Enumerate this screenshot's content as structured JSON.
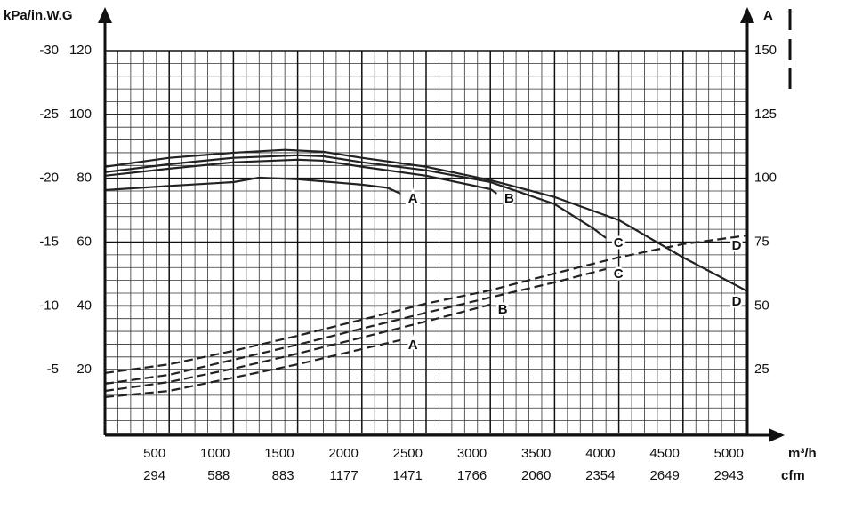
{
  "chart_data": {
    "type": "line",
    "y_axis_label": "kPa/in.W.G",
    "y2_axis_label": "A",
    "x_axis_label": "m³/h",
    "x2_axis_label": "cfm",
    "xlim": [
      0,
      5000
    ],
    "xticks": [
      500,
      1000,
      1500,
      2000,
      2500,
      3000,
      3500,
      4000,
      4500,
      5000
    ],
    "x2lim": [
      0,
      2943
    ],
    "x2ticks": [
      294,
      588,
      883,
      1177,
      1471,
      1766,
      2060,
      2354,
      2649,
      2943
    ],
    "ylim": [
      0,
      120
    ],
    "yticks": [
      20,
      40,
      60,
      80,
      100,
      120
    ],
    "y3lim": [
      0,
      -30
    ],
    "y3ticks": [
      -5,
      -10,
      -15,
      -20,
      -25,
      -30
    ],
    "y2lim": [
      0,
      150
    ],
    "y2ticks": [
      25,
      50,
      75,
      100,
      125,
      150
    ],
    "grid": true,
    "series": [
      {
        "name": "A",
        "color": "#222222",
        "dash": false,
        "x": [
          0,
          500,
          1000,
          1200,
          1500,
          2000,
          2200,
          2300
        ],
        "values": [
          76.3,
          77.6,
          78.8,
          80.2,
          79.7,
          78,
          77,
          75.2
        ]
      },
      {
        "name": "B",
        "color": "#222222",
        "dash": false,
        "x": [
          0,
          500,
          1000,
          1500,
          1700,
          2000,
          2500,
          3000,
          3050
        ],
        "values": [
          80.8,
          83,
          85,
          85.8,
          85.5,
          83.6,
          80.8,
          76.6,
          75.2
        ]
      },
      {
        "name": "C",
        "color": "#222222",
        "dash": false,
        "x": [
          0,
          500,
          1000,
          1500,
          1700,
          2000,
          2500,
          3000,
          3500,
          3800,
          3900
        ],
        "values": [
          81.9,
          84.4,
          86.4,
          87.2,
          86.9,
          85,
          82.5,
          78.8,
          71.9,
          64.3,
          61.3
        ]
      },
      {
        "name": "D",
        "color": "#222222",
        "dash": false,
        "x": [
          0,
          500,
          1000,
          1400,
          1700,
          2000,
          2500,
          3000,
          3500,
          4000,
          4500,
          5000
        ],
        "values": [
          83.6,
          86.4,
          88,
          88.9,
          88.3,
          86.4,
          83.6,
          79.4,
          74.1,
          66.9,
          55.2,
          44.6
        ]
      },
      {
        "name": "A",
        "color": "#222222",
        "dash": true,
        "axis": "y2",
        "x": [
          0,
          500,
          1000,
          1500,
          2000,
          2300
        ],
        "values": [
          14.3,
          16.7,
          21.9,
          27.1,
          33.1,
          36.6
        ]
      },
      {
        "name": "B",
        "color": "#222222",
        "dash": true,
        "axis": "y2",
        "x": [
          0,
          500,
          1000,
          1500,
          2000,
          2500,
          3000
        ],
        "values": [
          16.7,
          20.2,
          25.4,
          31.3,
          37.6,
          43.9,
          50.5
        ]
      },
      {
        "name": "C",
        "color": "#222222",
        "dash": true,
        "axis": "y2",
        "x": [
          0,
          500,
          1000,
          1500,
          2000,
          2500,
          3000,
          3500,
          3900
        ],
        "values": [
          19.5,
          23,
          28.9,
          34.8,
          41.1,
          47.3,
          53.3,
          59.2,
          64.4
        ]
      },
      {
        "name": "D",
        "color": "#222222",
        "dash": true,
        "axis": "y2",
        "x": [
          0,
          500,
          1000,
          1500,
          2000,
          2500,
          3000,
          3500,
          4000,
          4500,
          5000
        ],
        "values": [
          23.7,
          27.1,
          32.4,
          38.3,
          44.6,
          50.9,
          56.1,
          62.7,
          69,
          74.2,
          77.6
        ]
      }
    ]
  }
}
